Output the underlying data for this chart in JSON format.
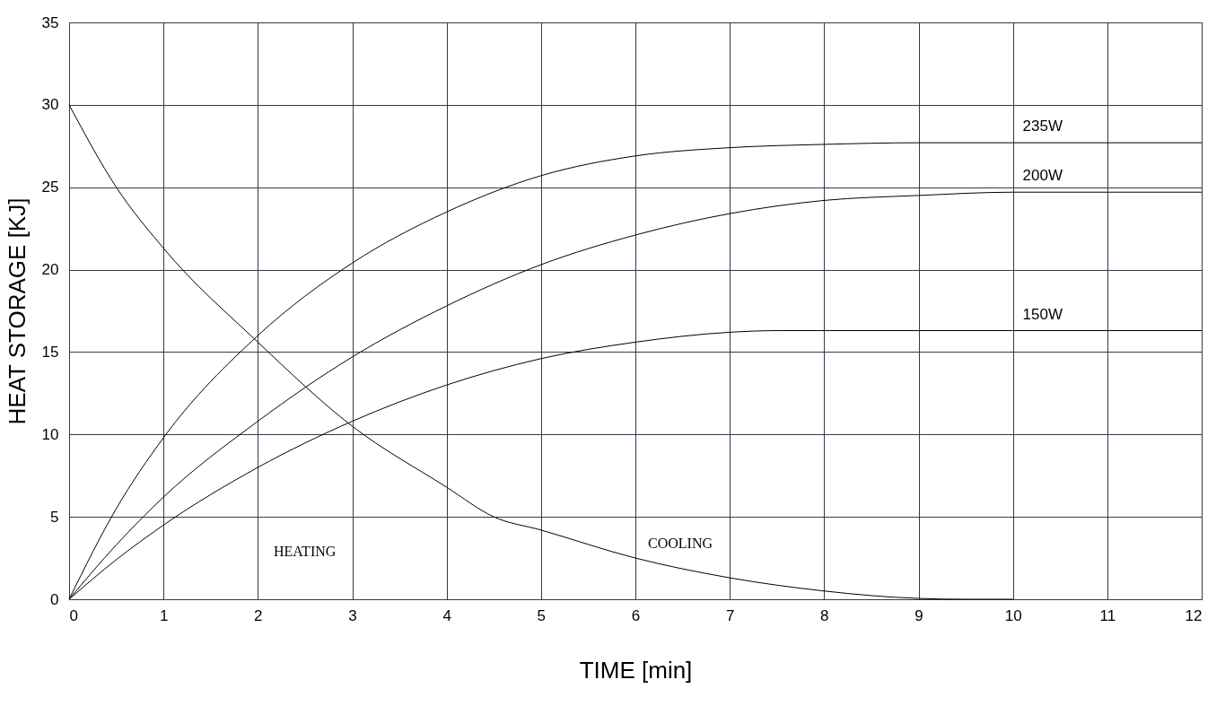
{
  "chart_data": {
    "type": "line",
    "xlabel": "TIME [min]",
    "ylabel": "HEAT STORAGE [KJ]",
    "xlim": [
      0,
      12
    ],
    "xticks": [
      0,
      1,
      2,
      3,
      4,
      5,
      6,
      7,
      8,
      9,
      10,
      11,
      12
    ],
    "ylim": [
      0,
      35
    ],
    "yticks": [
      0,
      5,
      10,
      15,
      20,
      25,
      30,
      35
    ],
    "grid": true,
    "legend": false,
    "marker": "none",
    "line_style": "solid",
    "series": [
      {
        "name": "235W",
        "color": "#000000",
        "x": [
          0,
          0.5,
          1,
          2,
          3,
          4,
          5,
          6,
          7,
          8,
          9,
          10,
          11,
          12
        ],
        "values": [
          0,
          5.5,
          9.8,
          16,
          20.4,
          23.5,
          25.7,
          26.9,
          27.4,
          27.6,
          27.7,
          27.7,
          27.7,
          27.7
        ]
      },
      {
        "name": "200W",
        "color": "#000000",
        "x": [
          0,
          0.5,
          1,
          2,
          3,
          4,
          5,
          6,
          7,
          8,
          9,
          10,
          11,
          12
        ],
        "values": [
          0,
          3.3,
          6.2,
          10.8,
          14.7,
          17.8,
          20.3,
          22.1,
          23.4,
          24.2,
          24.5,
          24.7,
          24.7,
          24.7
        ]
      },
      {
        "name": "150W",
        "color": "#000000",
        "x": [
          0,
          0.5,
          1,
          2,
          3,
          4,
          5,
          6,
          7,
          7.5,
          8,
          10,
          12
        ],
        "values": [
          0,
          2.4,
          4.5,
          8,
          10.8,
          13,
          14.6,
          15.6,
          16.2,
          16.3,
          16.3,
          16.3,
          16.3
        ]
      },
      {
        "color": "#000000",
        "x": [
          0,
          0.5,
          1,
          2,
          3,
          4,
          4.5,
          5,
          6,
          7,
          8,
          9,
          9.5,
          10
        ],
        "values": [
          30,
          25,
          21.3,
          15.6,
          10.5,
          6.8,
          5,
          4.2,
          2.5,
          1.3,
          0.5,
          0.05,
          0,
          0
        ]
      }
    ],
    "annotations": [
      "HEATING",
      "COOLING"
    ]
  }
}
